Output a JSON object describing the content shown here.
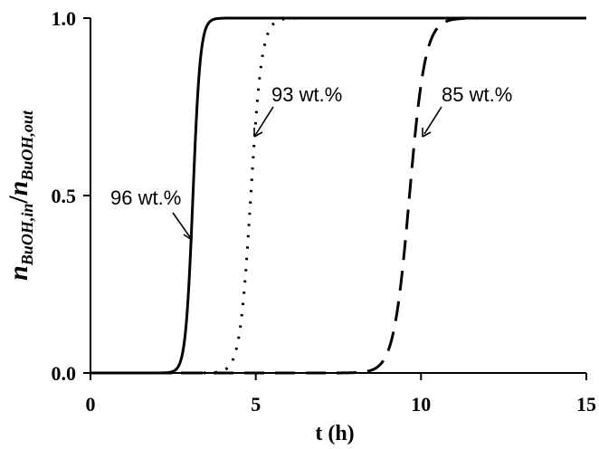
{
  "chart_data": {
    "type": "line",
    "xlabel": "t (h)",
    "ylabel": {
      "n1": "n",
      "sub1": "BuOH,in",
      "slash": "/",
      "n2": "n",
      "sub2": "BuOH,out"
    },
    "xlim": [
      0,
      15
    ],
    "ylim": [
      0,
      1
    ],
    "x_ticks": [
      "0",
      "5",
      "10",
      "15"
    ],
    "y_ticks": [
      "0.0",
      "0.5",
      "1.0"
    ],
    "grid": false,
    "series": [
      {
        "name": "96 wt.%",
        "style": "solid",
        "color": "#000000",
        "midpoint": 3.1,
        "steepness": 9.0,
        "x_end": 15
      },
      {
        "name": "93 wt.%",
        "style": "dotted",
        "color": "#000000",
        "midpoint": 4.85,
        "steepness": 6.0,
        "x_end": 9.7
      },
      {
        "name": "85 wt.%",
        "style": "dashed",
        "color": "#000000",
        "midpoint": 9.65,
        "steepness": 4.2,
        "x_end": 15
      }
    ],
    "annotations": [
      {
        "text": "96 wt.%",
        "series": 0
      },
      {
        "text": "93 wt.%",
        "series": 1
      },
      {
        "text": "85 wt.%",
        "series": 2
      }
    ]
  }
}
